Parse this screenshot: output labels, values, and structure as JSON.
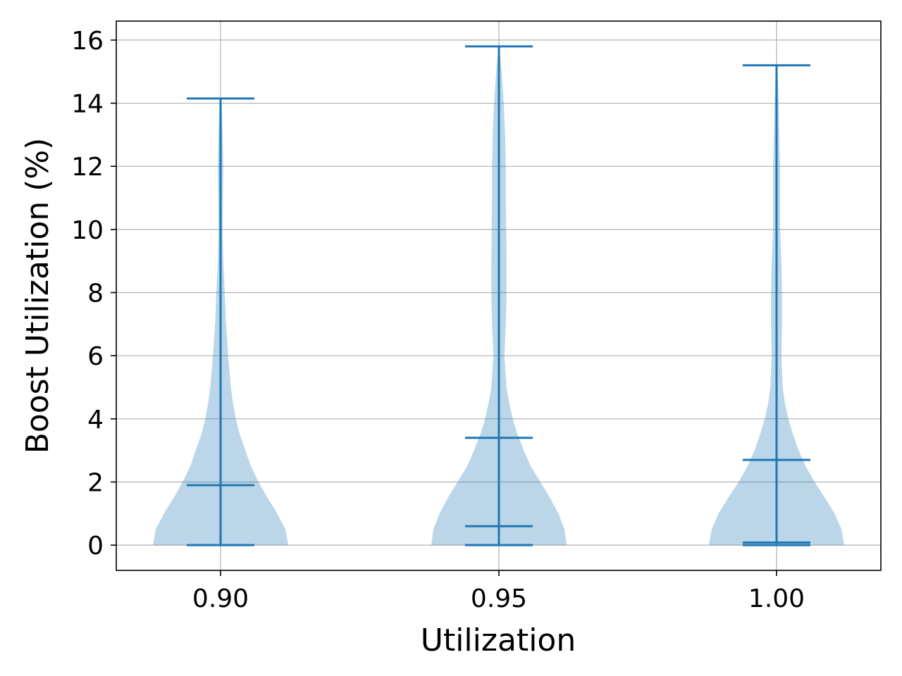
{
  "chart_data": {
    "type": "violin",
    "title": "",
    "xlabel": "Utilization",
    "ylabel": "Boost Utilization (%)",
    "categories": [
      "0.90",
      "0.95",
      "1.00"
    ],
    "ylim": [
      -0.8,
      16.6
    ],
    "yticks": [
      0,
      2,
      4,
      6,
      8,
      10,
      12,
      14,
      16
    ],
    "yticklabels": [
      "0",
      "2",
      "4",
      "6",
      "8",
      "10",
      "12",
      "14",
      "16"
    ],
    "grid": true,
    "violins": [
      {
        "category": "0.90",
        "min": 0.0,
        "median": 1.9,
        "max": 14.15,
        "extra_hline": null,
        "density": [
          [
            0,
            0.98
          ],
          [
            0.5,
            0.94
          ],
          [
            1,
            0.82
          ],
          [
            1.5,
            0.68
          ],
          [
            2,
            0.55
          ],
          [
            2.5,
            0.44
          ],
          [
            3,
            0.36
          ],
          [
            3.5,
            0.28
          ],
          [
            4,
            0.22
          ],
          [
            4.5,
            0.18
          ],
          [
            5,
            0.15
          ],
          [
            6,
            0.11
          ],
          [
            7,
            0.08
          ],
          [
            8,
            0.06
          ],
          [
            9,
            0.04
          ],
          [
            10,
            0.03
          ],
          [
            11,
            0.035
          ],
          [
            12,
            0.04
          ],
          [
            13,
            0.03
          ],
          [
            14,
            0.015
          ],
          [
            14.15,
            0.005
          ]
        ]
      },
      {
        "category": "0.95",
        "min": 0.0,
        "median": 0.6,
        "max": 15.8,
        "extra_hline": 3.4,
        "density": [
          [
            0,
            0.98
          ],
          [
            0.5,
            0.95
          ],
          [
            1,
            0.86
          ],
          [
            1.5,
            0.74
          ],
          [
            2,
            0.6
          ],
          [
            2.5,
            0.46
          ],
          [
            3,
            0.36
          ],
          [
            3.5,
            0.27
          ],
          [
            4,
            0.2
          ],
          [
            4.5,
            0.15
          ],
          [
            5,
            0.11
          ],
          [
            6,
            0.08
          ],
          [
            7,
            0.1
          ],
          [
            8,
            0.11
          ],
          [
            9,
            0.11
          ],
          [
            10,
            0.105
          ],
          [
            11,
            0.1
          ],
          [
            12,
            0.1
          ],
          [
            13,
            0.09
          ],
          [
            14,
            0.07
          ],
          [
            15,
            0.04
          ],
          [
            15.8,
            0.005
          ]
        ]
      },
      {
        "category": "1.00",
        "min": 0.0,
        "median": 0.08,
        "max": 15.2,
        "extra_hline": 2.7,
        "density": [
          [
            0,
            0.98
          ],
          [
            0.5,
            0.94
          ],
          [
            1,
            0.84
          ],
          [
            1.5,
            0.7
          ],
          [
            2,
            0.55
          ],
          [
            2.5,
            0.42
          ],
          [
            3,
            0.32
          ],
          [
            3.5,
            0.24
          ],
          [
            4,
            0.17
          ],
          [
            4.5,
            0.12
          ],
          [
            5,
            0.09
          ],
          [
            6,
            0.07
          ],
          [
            7,
            0.08
          ],
          [
            8,
            0.08
          ],
          [
            9,
            0.07
          ],
          [
            10,
            0.05
          ],
          [
            11,
            0.05
          ],
          [
            12,
            0.05
          ],
          [
            13,
            0.04
          ],
          [
            14,
            0.03
          ],
          [
            15,
            0.015
          ],
          [
            15.2,
            0.005
          ]
        ]
      }
    ],
    "colors": {
      "body_fill": "#1f77b4",
      "body_opacity": 0.3,
      "lines": "#1f77b4",
      "grid": "#b0b0b0",
      "axes": "#000000"
    }
  }
}
